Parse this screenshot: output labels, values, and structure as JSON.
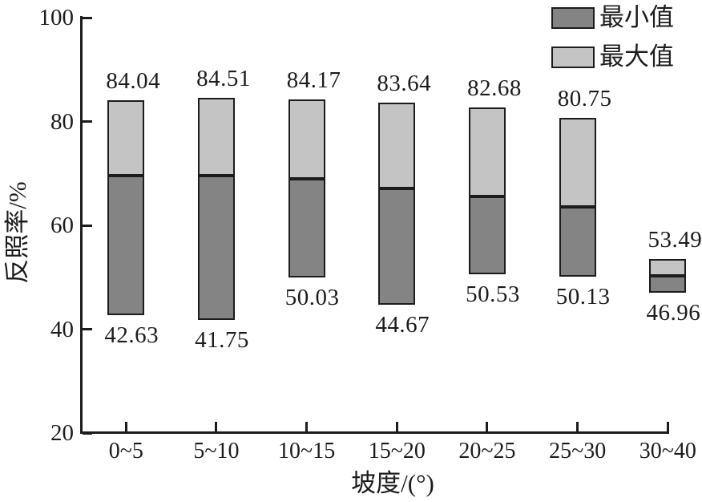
{
  "chart_data": {
    "type": "bar",
    "subtype": "floating-range-bars-min-max",
    "title": "",
    "xlabel": "坡度/(°)",
    "ylabel": "反照率/%",
    "categories": [
      "0~5",
      "5~10",
      "10~15",
      "15~20",
      "20~25",
      "25~30",
      "30~40"
    ],
    "series": [
      {
        "name": "最小值",
        "color": "#848484",
        "values": [
          42.63,
          41.75,
          50.03,
          44.67,
          50.53,
          50.13,
          46.96
        ]
      },
      {
        "name": "最大值",
        "color": "#c4c4c4",
        "values": [
          84.04,
          84.51,
          84.17,
          83.64,
          82.68,
          80.75,
          53.49
        ]
      }
    ],
    "split_values_estimated_unlabeled": [
      69.6,
      69.5,
      68.9,
      67.1,
      65.5,
      63.6,
      50.3
    ],
    "ylim": [
      20,
      100
    ],
    "yticks": [
      20,
      40,
      60,
      80,
      100
    ],
    "grid": false,
    "legend_position": "top-right",
    "bar_labels": {
      "max_above_bar": true,
      "min_below_bar": true
    },
    "colors": {
      "axis": "#1c1c1c",
      "text": "#1c1c1c",
      "min_fill": "#848484",
      "max_fill": "#c4c4c4",
      "background": "#ffffff"
    }
  }
}
